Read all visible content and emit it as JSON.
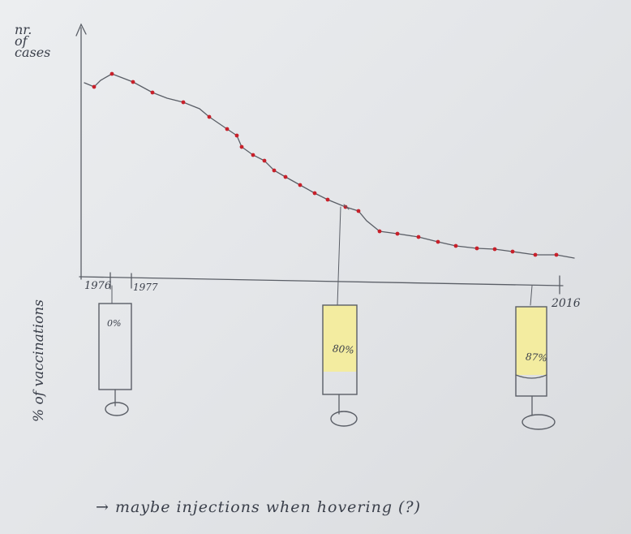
{
  "sketch": {
    "y_axis_label_lines": [
      "nr.",
      "of",
      "cases"
    ],
    "x_tick_labels": [
      "1976",
      "1977",
      "2016"
    ],
    "vaccination_axis_label": "% of vaccinations",
    "syringes": [
      {
        "label": "0%",
        "fill_fraction": 0.0
      },
      {
        "label": "80%",
        "fill_fraction": 0.8
      },
      {
        "label": "87%",
        "fill_fraction": 0.87
      }
    ],
    "note": "→ maybe injections when hovering (?)",
    "colors": {
      "dots": "#c8202a",
      "syringe_fill": "#f3eca0",
      "pencil": "#5a5e66"
    }
  }
}
